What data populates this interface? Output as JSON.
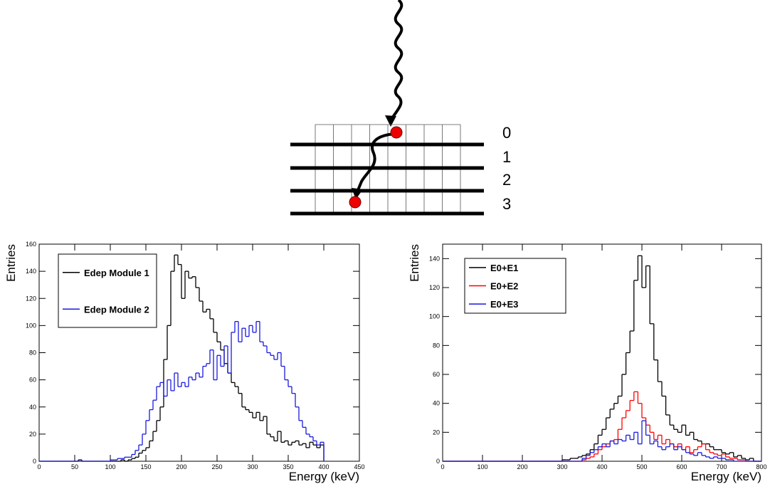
{
  "diagram": {
    "layer_labels": [
      "0",
      "1",
      "2",
      "3"
    ]
  },
  "chart_data": [
    {
      "type": "histogram",
      "xlabel": "Energy (keV)",
      "ylabel": "Entries",
      "xlim": [
        0,
        450
      ],
      "ylim": [
        0,
        160
      ],
      "xticks": [
        0,
        50,
        100,
        150,
        200,
        250,
        300,
        350,
        400,
        450
      ],
      "yticks": [
        0,
        20,
        40,
        60,
        80,
        100,
        120,
        140,
        160
      ],
      "legend": "top-left",
      "bins": [
        0,
        5,
        10,
        15,
        20,
        25,
        30,
        35,
        40,
        45,
        50,
        55,
        60,
        65,
        70,
        75,
        80,
        85,
        90,
        95,
        100,
        105,
        110,
        115,
        120,
        125,
        130,
        135,
        140,
        145,
        150,
        155,
        160,
        165,
        170,
        175,
        180,
        185,
        190,
        195,
        200,
        205,
        210,
        215,
        220,
        225,
        230,
        235,
        240,
        245,
        250,
        255,
        260,
        265,
        270,
        275,
        280,
        285,
        290,
        295,
        300,
        305,
        310,
        315,
        320,
        325,
        330,
        335,
        340,
        345,
        350,
        355,
        360,
        365,
        370,
        375,
        380,
        385,
        390,
        395,
        400
      ],
      "series": [
        {
          "name": "Edep Module 1",
          "color": "#000000",
          "values": [
            0,
            0,
            0,
            0,
            0,
            0,
            0,
            0,
            0,
            0,
            0,
            1,
            0,
            0,
            0,
            0,
            0,
            0,
            0,
            0,
            0,
            0,
            0,
            1,
            0,
            1,
            2,
            3,
            6,
            8,
            10,
            15,
            22,
            30,
            40,
            75,
            100,
            140,
            152,
            145,
            120,
            140,
            135,
            136,
            128,
            118,
            110,
            112,
            105,
            95,
            88,
            82,
            72,
            65,
            58,
            55,
            50,
            40,
            38,
            36,
            32,
            36,
            30,
            33,
            20,
            18,
            15,
            22,
            14,
            15,
            12,
            14,
            15,
            12,
            13,
            10,
            14,
            12,
            10,
            12
          ]
        },
        {
          "name": "Edep Module 2",
          "color": "#1a1adc",
          "values": [
            0,
            0,
            0,
            0,
            0,
            0,
            0,
            0,
            0,
            0,
            0,
            0,
            0,
            0,
            0,
            0,
            0,
            0,
            0,
            0,
            1,
            1,
            2,
            2,
            3,
            3,
            5,
            8,
            12,
            20,
            30,
            38,
            45,
            55,
            58,
            48,
            60,
            52,
            65,
            55,
            58,
            55,
            62,
            60,
            65,
            62,
            70,
            72,
            82,
            60,
            78,
            70,
            85,
            65,
            95,
            103,
            88,
            98,
            92,
            100,
            95,
            103,
            88,
            85,
            80,
            78,
            75,
            80,
            70,
            60,
            55,
            50,
            40,
            30,
            25,
            20,
            18,
            15,
            12,
            14
          ]
        }
      ]
    },
    {
      "type": "histogram",
      "xlabel": "Energy (keV)",
      "ylabel": "Entries",
      "xlim": [
        0,
        800
      ],
      "ylim": [
        0,
        150
      ],
      "xticks": [
        0,
        100,
        200,
        300,
        400,
        500,
        600,
        700,
        800
      ],
      "yticks": [
        0,
        20,
        40,
        60,
        80,
        100,
        120,
        140
      ],
      "legend": "top-left",
      "bins": [
        0,
        10,
        20,
        30,
        40,
        50,
        60,
        70,
        80,
        90,
        100,
        110,
        120,
        130,
        140,
        150,
        160,
        170,
        180,
        190,
        200,
        210,
        220,
        230,
        240,
        250,
        260,
        270,
        280,
        290,
        300,
        310,
        320,
        330,
        340,
        350,
        360,
        370,
        380,
        390,
        400,
        410,
        420,
        430,
        440,
        450,
        460,
        470,
        480,
        490,
        500,
        510,
        520,
        530,
        540,
        550,
        560,
        570,
        580,
        590,
        600,
        610,
        620,
        630,
        640,
        650,
        660,
        670,
        680,
        690,
        700,
        710,
        720,
        730,
        740,
        750,
        760,
        770,
        780,
        790,
        800
      ],
      "series": [
        {
          "name": "E0+E1",
          "color": "#000000",
          "values": [
            0,
            0,
            0,
            0,
            0,
            0,
            0,
            0,
            0,
            0,
            0,
            0,
            0,
            0,
            0,
            0,
            0,
            0,
            0,
            0,
            0,
            0,
            0,
            0,
            0,
            0,
            0,
            0,
            0,
            0,
            1,
            1,
            2,
            2,
            3,
            4,
            5,
            8,
            12,
            18,
            22,
            30,
            36,
            40,
            45,
            60,
            75,
            90,
            125,
            142,
            120,
            135,
            95,
            70,
            55,
            45,
            32,
            25,
            22,
            20,
            25,
            18,
            20,
            15,
            14,
            12,
            12,
            10,
            8,
            8,
            6,
            5,
            6,
            3,
            4,
            2,
            1,
            2,
            0,
            0
          ]
        },
        {
          "name": "E0+E2",
          "color": "#ff0000",
          "values": [
            0,
            0,
            0,
            0,
            0,
            0,
            0,
            0,
            0,
            0,
            0,
            0,
            0,
            0,
            0,
            0,
            0,
            0,
            0,
            0,
            0,
            0,
            0,
            0,
            0,
            0,
            0,
            0,
            0,
            0,
            0,
            0,
            0,
            0,
            0,
            1,
            2,
            3,
            5,
            8,
            10,
            12,
            14,
            15,
            22,
            30,
            35,
            42,
            48,
            40,
            30,
            25,
            20,
            15,
            18,
            12,
            15,
            12,
            10,
            12,
            8,
            10,
            6,
            8,
            10,
            12,
            8,
            6,
            5,
            4,
            5,
            3,
            2,
            2,
            1,
            1,
            0,
            0,
            0,
            0
          ]
        },
        {
          "name": "E0+E3",
          "color": "#1a1adc",
          "values": [
            0,
            0,
            0,
            0,
            0,
            0,
            0,
            0,
            0,
            0,
            0,
            0,
            0,
            0,
            0,
            0,
            0,
            0,
            0,
            0,
            0,
            0,
            0,
            0,
            0,
            0,
            0,
            0,
            0,
            0,
            0,
            0,
            0,
            0,
            0,
            2,
            4,
            6,
            8,
            10,
            12,
            10,
            14,
            12,
            15,
            14,
            18,
            15,
            20,
            12,
            28,
            18,
            12,
            14,
            10,
            8,
            10,
            12,
            8,
            10,
            8,
            6,
            5,
            4,
            6,
            4,
            3,
            2,
            3,
            2,
            2,
            1,
            1,
            0,
            0,
            0,
            0,
            0,
            0,
            0
          ]
        }
      ]
    }
  ]
}
